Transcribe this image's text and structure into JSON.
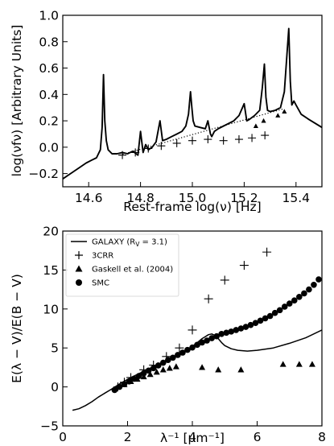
{
  "chart_data": [
    {
      "type": "line",
      "xlabel": "Rest-frame log(ν) [Hz]",
      "ylabel": "log(νfν) [Arbitrary Units]",
      "xlim": [
        14.5,
        15.5
      ],
      "ylim": [
        -0.3,
        1.0
      ],
      "xticks": [
        "14.6",
        "14.8",
        "15.0",
        "15.2",
        "15.4"
      ],
      "xtick_values": [
        14.6,
        14.8,
        15.0,
        15.2,
        15.4
      ],
      "yticks": [
        "−0.2",
        "0.0",
        "0.2",
        "0.4",
        "0.6",
        "0.8",
        "1.0"
      ],
      "ytick_values": [
        -0.2,
        0.0,
        0.2,
        0.4,
        0.6,
        0.8,
        1.0
      ],
      "series": [
        {
          "style": "solid",
          "x": [
            14.5,
            14.53,
            14.56,
            14.59,
            14.61,
            14.63,
            14.645,
            14.652,
            14.657,
            14.662,
            14.668,
            14.675,
            14.69,
            14.71,
            14.73,
            14.75,
            14.77,
            14.79,
            14.8,
            14.81,
            14.82,
            14.83,
            14.845,
            14.86,
            14.875,
            14.885,
            14.9,
            14.92,
            14.94,
            14.96,
            14.975,
            14.985,
            14.993,
            14.998,
            15.003,
            15.01,
            15.03,
            15.05,
            15.06,
            15.07,
            15.075,
            15.085,
            15.1,
            15.12,
            15.14,
            15.16,
            15.18,
            15.2,
            15.21,
            15.22,
            15.24,
            15.26,
            15.27,
            15.278,
            15.284,
            15.29,
            15.3,
            15.32,
            15.34,
            15.355,
            15.365,
            15.372,
            15.378,
            15.384,
            15.392,
            15.4,
            15.42,
            15.45,
            15.5
          ],
          "y": [
            -0.24,
            -0.2,
            -0.16,
            -0.12,
            -0.1,
            -0.08,
            -0.02,
            0.15,
            0.55,
            0.2,
            0.05,
            -0.02,
            -0.05,
            -0.05,
            -0.04,
            -0.05,
            -0.03,
            -0.06,
            0.12,
            -0.04,
            0.02,
            -0.02,
            0.0,
            0.04,
            0.2,
            0.05,
            0.06,
            0.08,
            0.1,
            0.12,
            0.16,
            0.25,
            0.42,
            0.3,
            0.2,
            0.16,
            0.15,
            0.14,
            0.2,
            0.1,
            0.08,
            0.12,
            0.14,
            0.16,
            0.18,
            0.2,
            0.24,
            0.33,
            0.2,
            0.21,
            0.24,
            0.28,
            0.45,
            0.63,
            0.38,
            0.28,
            0.27,
            0.28,
            0.3,
            0.42,
            0.7,
            0.9,
            0.5,
            0.32,
            0.35,
            0.32,
            0.25,
            0.21,
            0.15
          ]
        },
        {
          "style": "dotted",
          "x": [
            14.72,
            15.35
          ],
          "y": [
            -0.06,
            0.29
          ]
        },
        {
          "style": "plus-markers",
          "x": [
            14.73,
            14.78,
            14.83,
            14.88,
            14.94,
            15.0,
            15.06,
            15.12,
            15.18,
            15.23,
            15.28
          ],
          "y": [
            -0.06,
            -0.04,
            -0.01,
            0.01,
            0.03,
            0.05,
            0.06,
            0.05,
            0.06,
            0.07,
            0.09
          ]
        },
        {
          "style": "triangle-markers",
          "x": [
            15.245,
            15.275,
            15.33,
            15.355
          ],
          "y": [
            0.16,
            0.2,
            0.24,
            0.27
          ]
        }
      ]
    },
    {
      "type": "scatter",
      "xlabel": "λ⁻¹ [μm⁻¹]",
      "ylabel": "E(λ − V)/E(B − V)",
      "xlim": [
        0,
        8
      ],
      "ylim": [
        -5,
        20
      ],
      "xticks": [
        "0",
        "2",
        "4",
        "6",
        "8"
      ],
      "xtick_values": [
        0,
        2,
        4,
        6,
        8
      ],
      "yticks": [
        "−5",
        "0",
        "5",
        "10",
        "15",
        "20"
      ],
      "ytick_values": [
        -5,
        0,
        5,
        10,
        15,
        20
      ],
      "legend_position": "top-left",
      "series": [
        {
          "name": "GALAXY (R",
          "name_sub": "V",
          "name_tail": " = 3.1)",
          "marker": "line",
          "x": [
            0.3,
            0.5,
            0.7,
            0.9,
            1.1,
            1.3,
            1.5,
            1.8,
            2.1,
            2.4,
            2.7,
            3.0,
            3.3,
            3.6,
            3.9,
            4.1,
            4.3,
            4.5,
            4.6,
            4.7,
            4.8,
            4.9,
            5.0,
            5.2,
            5.4,
            5.7,
            6.0,
            6.5,
            7.0,
            7.5,
            8.0
          ],
          "y": [
            -3.0,
            -2.8,
            -2.4,
            -1.9,
            -1.3,
            -0.8,
            -0.3,
            0.5,
            1.2,
            1.8,
            2.4,
            3.0,
            3.6,
            4.2,
            4.9,
            5.5,
            6.2,
            6.7,
            6.8,
            6.6,
            6.2,
            5.7,
            5.3,
            4.9,
            4.7,
            4.6,
            4.7,
            5.0,
            5.6,
            6.3,
            7.3
          ]
        },
        {
          "name": "3CRR",
          "marker": "plus",
          "x": [
            1.7,
            1.9,
            2.1,
            2.5,
            2.8,
            3.2,
            3.6,
            4.0,
            4.5,
            5.0,
            5.6,
            6.3
          ],
          "y": [
            0.0,
            0.6,
            1.2,
            2.2,
            2.8,
            3.9,
            5.0,
            7.3,
            11.3,
            13.7,
            15.6,
            17.3
          ]
        },
        {
          "name": "Gaskell et al. (2004)",
          "marker": "triangle",
          "x": [
            1.7,
            1.9,
            2.1,
            2.3,
            2.5,
            2.7,
            2.9,
            3.1,
            3.3,
            3.5,
            4.3,
            4.8,
            5.5,
            6.8,
            7.3,
            7.7
          ],
          "y": [
            0.0,
            0.3,
            0.7,
            1.0,
            1.3,
            1.6,
            1.9,
            2.2,
            2.4,
            2.6,
            2.5,
            2.2,
            2.2,
            2.9,
            2.9,
            2.9
          ]
        },
        {
          "name": "SMC",
          "marker": "circle",
          "x": [
            1.6,
            1.75,
            1.9,
            2.05,
            2.2,
            2.35,
            2.5,
            2.65,
            2.8,
            2.95,
            3.1,
            3.25,
            3.4,
            3.55,
            3.7,
            3.85,
            4.0,
            4.15,
            4.3,
            4.45,
            4.6,
            4.75,
            4.9,
            5.05,
            5.2,
            5.35,
            5.5,
            5.65,
            5.8,
            5.95,
            6.1,
            6.25,
            6.4,
            6.55,
            6.7,
            6.85,
            7.0,
            7.15,
            7.3,
            7.45,
            7.6,
            7.75,
            7.9
          ],
          "y": [
            -0.4,
            0.0,
            0.35,
            0.7,
            1.05,
            1.4,
            1.75,
            2.1,
            2.4,
            2.75,
            3.1,
            3.45,
            3.75,
            4.1,
            4.4,
            4.75,
            5.05,
            5.4,
            5.7,
            5.95,
            6.25,
            6.5,
            6.8,
            6.95,
            7.1,
            7.3,
            7.5,
            7.7,
            7.95,
            8.2,
            8.5,
            8.8,
            9.1,
            9.5,
            9.85,
            10.3,
            10.7,
            11.1,
            11.55,
            12.0,
            12.5,
            13.1,
            13.8
          ]
        }
      ]
    }
  ]
}
